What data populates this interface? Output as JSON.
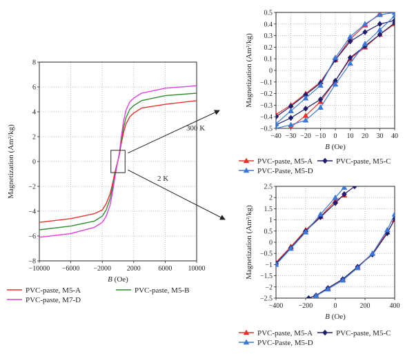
{
  "annotations": {
    "label_300k": "300 K",
    "label_2k": "2 K"
  },
  "chart_data": [
    {
      "type": "line",
      "xlabel_italic": "B",
      "xlabel_unit": " (Oe)",
      "ylabel": "Magnetization (Am²/kg)",
      "xlim": [
        -10000,
        10000
      ],
      "ylim": [
        -8,
        8
      ],
      "xticks": [
        -10000,
        -6000,
        -2000,
        2000,
        6000,
        10000
      ],
      "xtick_labels": [
        "−10000",
        "−6000",
        "−2000",
        "2000",
        "6000",
        "10000"
      ],
      "yticks": [
        -8,
        -6,
        -4,
        -2,
        0,
        2,
        4,
        6,
        8
      ],
      "ytick_labels": [
        "−8",
        "−6",
        "−4",
        "−2",
        "0",
        "2",
        "4",
        "6",
        "8"
      ],
      "grid": "dotted",
      "legend_position": "bottom",
      "series": [
        {
          "name": "PVC-paste, M5-A",
          "color": "#e8302a",
          "x": [
            -10000,
            -6000,
            -3000,
            -2000,
            -1500,
            -1000,
            -700,
            -400,
            -200,
            0,
            200,
            400,
            700,
            1000,
            1500,
            2000,
            3000,
            6000,
            10000
          ],
          "y": [
            -4.9,
            -4.6,
            -4.2,
            -3.9,
            -3.4,
            -2.6,
            -1.8,
            -0.9,
            -0.4,
            0.1,
            0.6,
            1.4,
            2.3,
            3.0,
            3.6,
            3.9,
            4.3,
            4.6,
            4.9
          ]
        },
        {
          "name": "PVC-paste, M5-B",
          "color": "#2e8b2e",
          "x": [
            -10000,
            -6000,
            -3000,
            -2000,
            -1500,
            -1000,
            -700,
            -400,
            -200,
            0,
            200,
            400,
            700,
            1000,
            1500,
            2000,
            3000,
            6000,
            10000
          ],
          "y": [
            -5.5,
            -5.2,
            -4.8,
            -4.4,
            -3.9,
            -3.0,
            -2.1,
            -1.1,
            -0.5,
            0.1,
            0.7,
            1.6,
            2.7,
            3.5,
            4.2,
            4.5,
            4.9,
            5.3,
            5.5
          ]
        },
        {
          "name": "PVC-paste, M7-D",
          "color": "#e23de0",
          "x": [
            -10000,
            -6000,
            -3000,
            -2000,
            -1500,
            -1000,
            -700,
            -400,
            -200,
            0,
            200,
            400,
            700,
            1000,
            1500,
            2000,
            3000,
            6000,
            10000
          ],
          "y": [
            -6.1,
            -5.8,
            -5.3,
            -4.9,
            -4.4,
            -3.5,
            -2.5,
            -1.3,
            -0.6,
            0.1,
            0.8,
            1.9,
            3.2,
            4.1,
            4.8,
            5.1,
            5.5,
            5.9,
            6.1
          ]
        }
      ]
    },
    {
      "type": "line",
      "xlabel_italic": "B",
      "xlabel_unit": " (Oe)",
      "ylabel": "Magnetization (Am²/kg)",
      "xlim": [
        -40,
        40
      ],
      "ylim": [
        -0.5,
        0.5
      ],
      "xticks": [
        -40,
        -30,
        -20,
        -10,
        0,
        10,
        20,
        30,
        40
      ],
      "xtick_labels": [
        "−40",
        "−30",
        "−20",
        "−10",
        "0",
        "10",
        "20",
        "30",
        "40"
      ],
      "yticks": [
        -0.5,
        -0.4,
        -0.3,
        -0.2,
        -0.1,
        0,
        0.1,
        0.2,
        0.3,
        0.4,
        0.5
      ],
      "ytick_labels": [
        "−0.5",
        "−0.4",
        "−0.3",
        "−0.2",
        "−0.1",
        "0",
        "0.1",
        "0.2",
        "0.3",
        "0.4",
        "0.5"
      ],
      "grid": "dotted",
      "legend_position": "bottom",
      "series": [
        {
          "name": "PVC-paste, M5-A",
          "color": "#e8302a",
          "marker": "triangle",
          "upper": {
            "x": [
              -40,
              -30,
              -20,
              -10,
              0,
              10,
              20,
              30
            ],
            "y": [
              -0.38,
              -0.3,
              -0.2,
              -0.1,
              0.09,
              0.27,
              0.39,
              0.49
            ]
          },
          "lower": {
            "x": [
              -30,
              -20,
              -10,
              0,
              10,
              20,
              30,
              40
            ],
            "y": [
              -0.49,
              -0.39,
              -0.27,
              -0.09,
              0.1,
              0.2,
              0.31,
              0.4
            ]
          }
        },
        {
          "name": "PVC-paste, M5-C",
          "color": "#1d1d6e",
          "marker": "diamond",
          "upper": {
            "x": [
              -40,
              -30,
              -20,
              -10,
              0,
              10,
              20,
              30,
              40
            ],
            "y": [
              -0.4,
              -0.31,
              -0.21,
              -0.11,
              0.09,
              0.25,
              0.33,
              0.4,
              0.43
            ]
          },
          "lower": {
            "x": [
              -40,
              -30,
              -20,
              -10,
              0,
              10,
              20,
              30,
              40
            ],
            "y": [
              -0.47,
              -0.41,
              -0.33,
              -0.25,
              -0.09,
              0.11,
              0.21,
              0.31,
              0.41
            ]
          }
        },
        {
          "name": "PVC-Paste, M5-D",
          "color": "#3a78d8",
          "marker": "triangle",
          "upper": {
            "x": [
              -40,
              -30,
              -20,
              -10,
              0,
              10,
              20,
              30,
              40
            ],
            "y": [
              -0.46,
              -0.35,
              -0.24,
              -0.13,
              0.11,
              0.29,
              0.4,
              0.48,
              0.5
            ]
          },
          "lower": {
            "x": [
              -40,
              -30,
              -20,
              -10,
              0,
              10,
              20,
              30,
              40
            ],
            "y": [
              -0.5,
              -0.47,
              -0.43,
              -0.32,
              -0.12,
              0.06,
              0.23,
              0.35,
              0.47
            ]
          }
        }
      ]
    },
    {
      "type": "line",
      "xlabel_italic": "B",
      "xlabel_unit": " (Oe)",
      "ylabel": "Magnetization (Am²/kg)",
      "xlim": [
        -400,
        400
      ],
      "ylim": [
        -2.5,
        2.5
      ],
      "xticks": [
        -400,
        -200,
        0,
        200,
        400
      ],
      "xtick_labels": [
        "−400",
        "−200",
        "0",
        "200",
        "400"
      ],
      "yticks": [
        -2.5,
        -2,
        -1.5,
        -1,
        -0.5,
        0,
        0.5,
        1,
        1.5,
        2,
        2.5
      ],
      "ytick_labels": [
        "−2.5",
        "−2",
        "−1.5",
        "−1",
        "−0.5",
        "0",
        "0.5",
        "1",
        "1.5",
        "2",
        "2.5"
      ],
      "grid": "dotted",
      "legend_position": "bottom",
      "series": [
        {
          "name": "PVC-paste, M5-A",
          "color": "#e8302a",
          "marker": "triangle",
          "upper": {
            "x": [
              -400,
              -300,
              -200,
              -100,
              0,
              60
            ],
            "y": [
              -0.9,
              -0.2,
              0.55,
              1.15,
              1.85,
              2.1
            ]
          },
          "lower": {
            "x": [
              -130,
              -50,
              50,
              150,
              250,
              350,
              400
            ],
            "y": [
              -2.38,
              -2.05,
              -1.65,
              -1.1,
              -0.5,
              0.45,
              1.0
            ]
          }
        },
        {
          "name": "PVC-paste, M5-C",
          "color": "#1d1d6e",
          "marker": "diamond",
          "upper": {
            "x": [
              -400,
              -300,
              -200,
              -100,
              0,
              60,
              130
            ],
            "y": [
              -0.95,
              -0.25,
              0.5,
              1.12,
              1.75,
              2.15,
              2.5
            ]
          },
          "lower": {
            "x": [
              -180,
              -130,
              -50,
              50,
              150,
              250,
              350,
              400
            ],
            "y": [
              -2.5,
              -2.38,
              -2.05,
              -1.65,
              -1.1,
              -0.55,
              0.4,
              1.05
            ]
          }
        },
        {
          "name": "PVC-Paste, M5-D",
          "color": "#3a78d8",
          "marker": "triangle",
          "upper": {
            "x": [
              -400,
              -300,
              -200,
              -100,
              0,
              60
            ],
            "y": [
              -1.0,
              -0.28,
              0.45,
              1.25,
              2.0,
              2.45
            ]
          },
          "lower": {
            "x": [
              -130,
              -50,
              50,
              150,
              250,
              350,
              400
            ],
            "y": [
              -2.4,
              -2.1,
              -1.7,
              -1.15,
              -0.5,
              0.55,
              1.25
            ]
          }
        }
      ]
    }
  ]
}
